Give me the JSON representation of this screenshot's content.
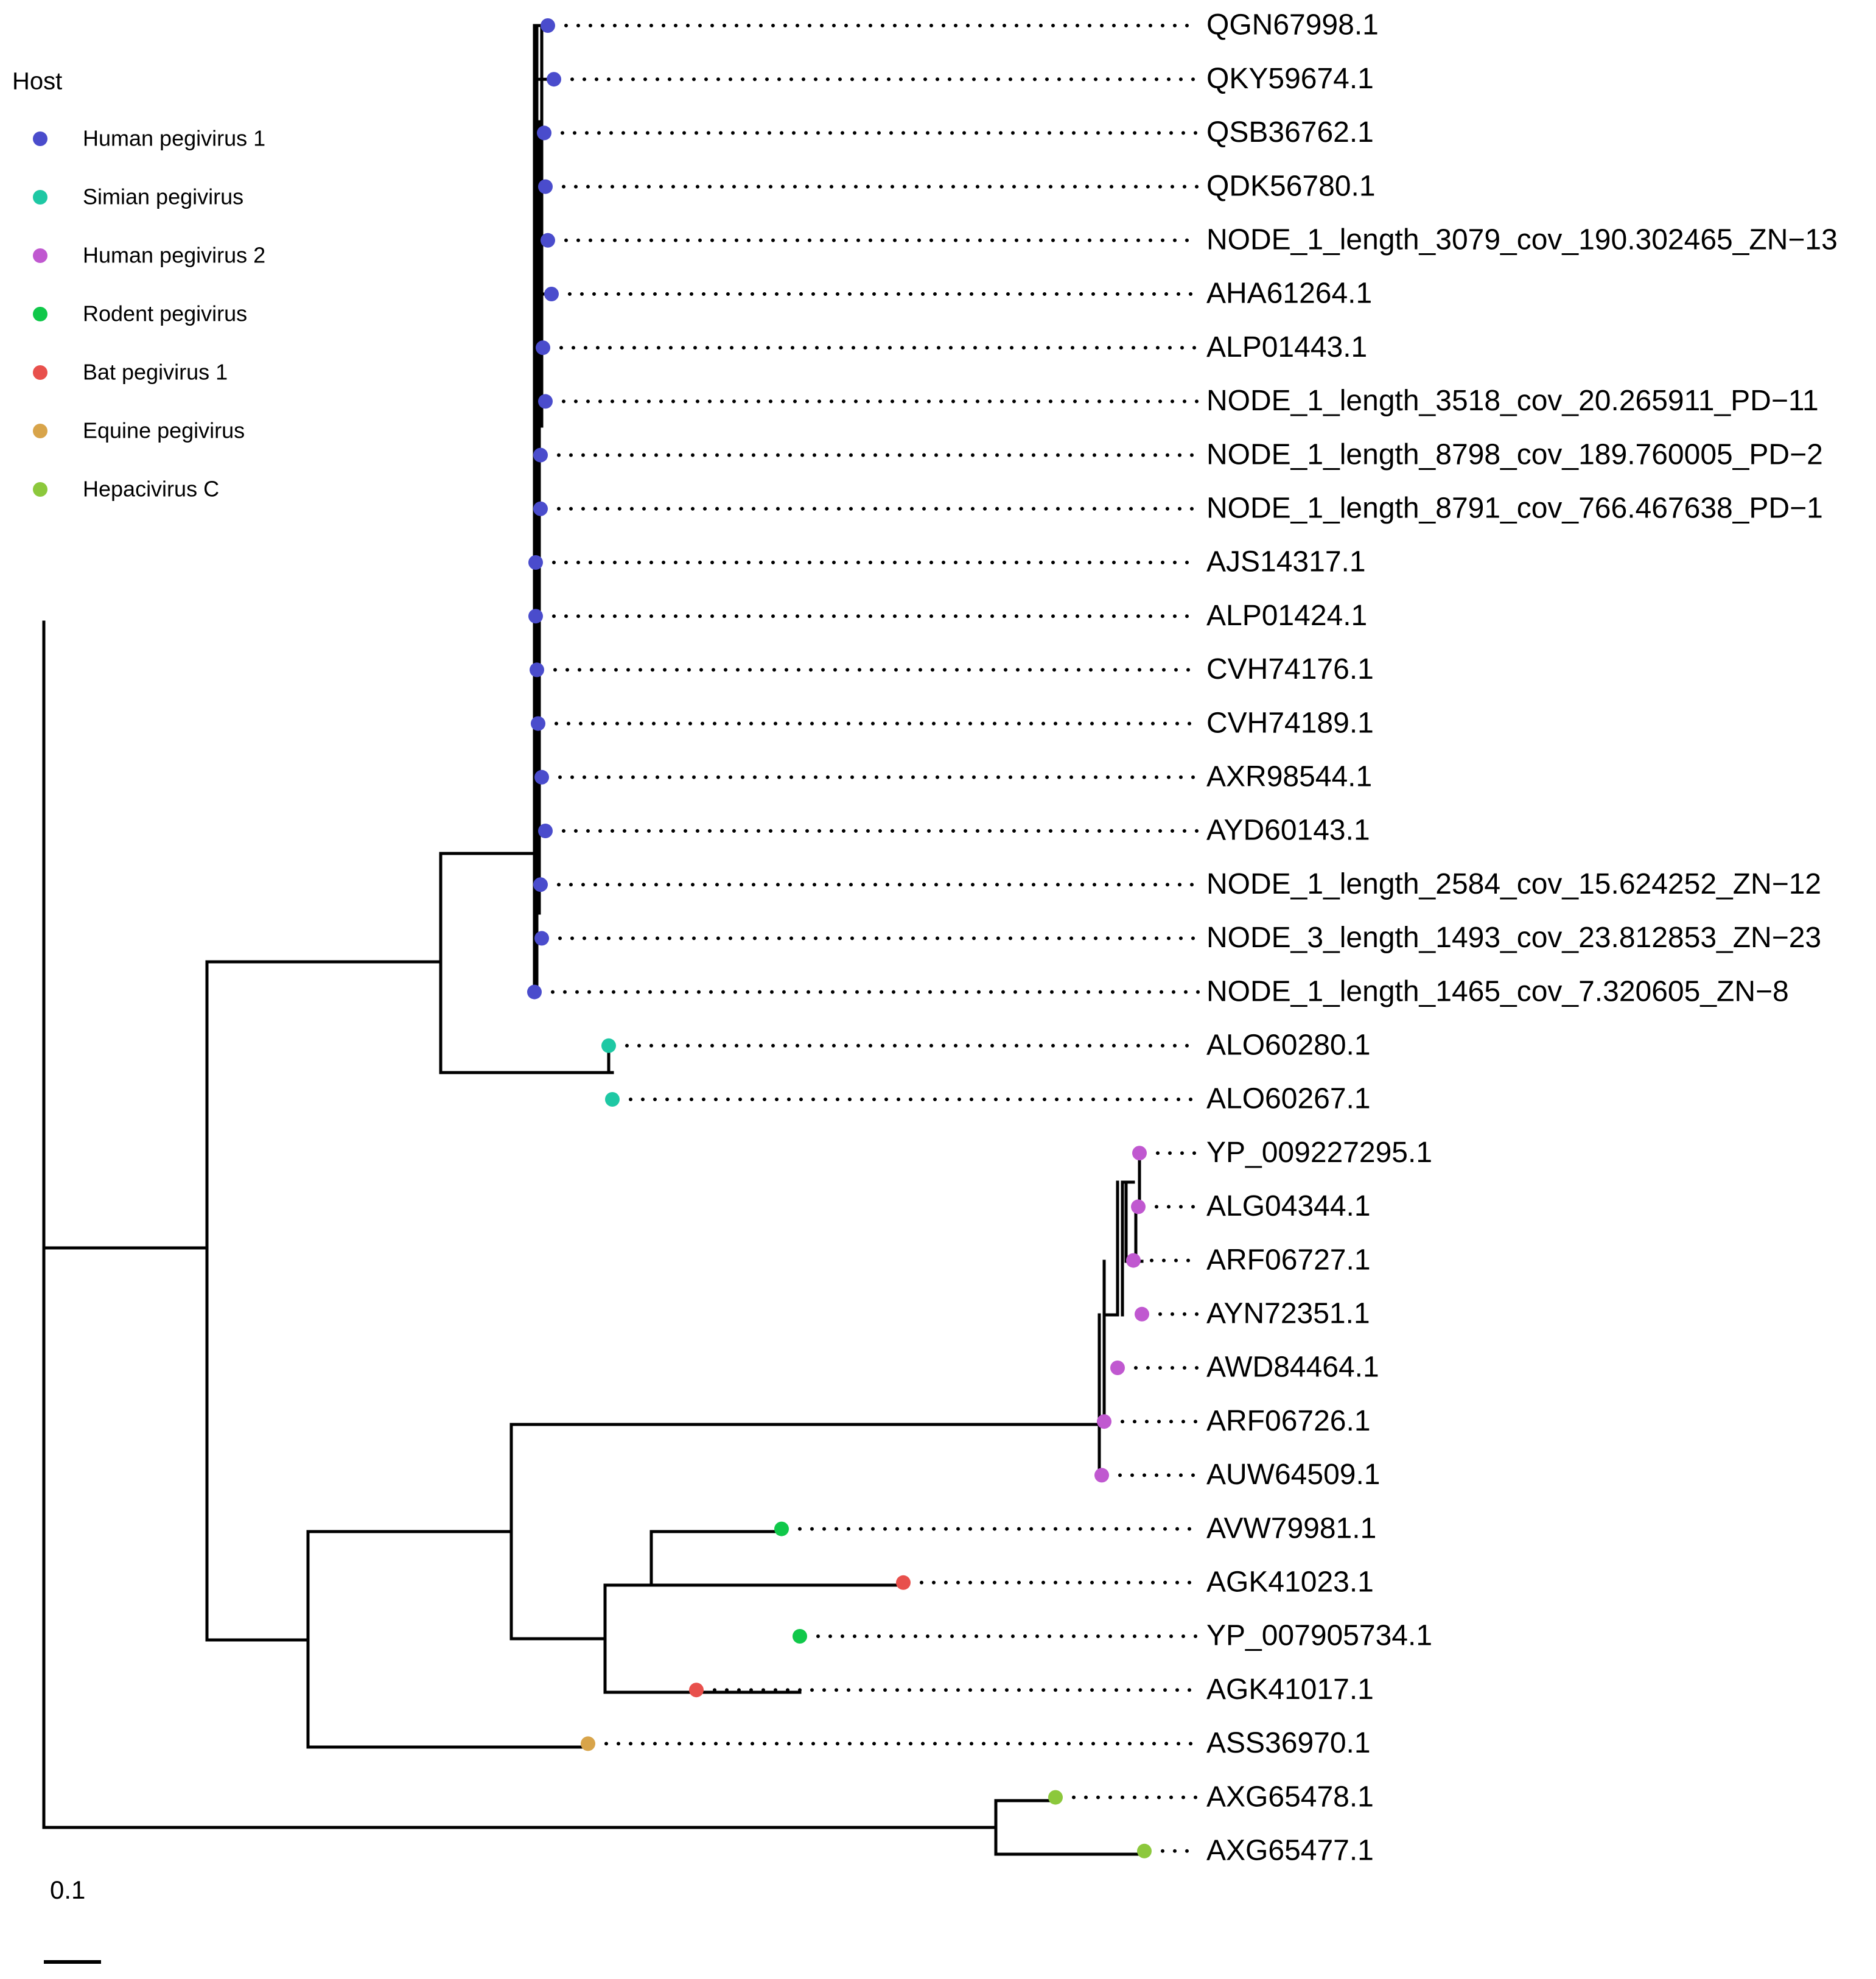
{
  "legend": {
    "title": "Host",
    "items": [
      {
        "key": "hpgv1",
        "label": "Human pegivirus 1",
        "color": "#4a4ccc"
      },
      {
        "key": "spgv",
        "label": "Simian pegivirus",
        "color": "#1ec8a4"
      },
      {
        "key": "hpgv2",
        "label": "Human pegivirus 2",
        "color": "#c058d0"
      },
      {
        "key": "rpgv",
        "label": "Rodent pegivirus",
        "color": "#10c84a"
      },
      {
        "key": "bpgv",
        "label": "Bat pegivirus 1",
        "color": "#e8504c"
      },
      {
        "key": "epgv",
        "label": "Equine pegivirus",
        "color": "#d8a44a"
      },
      {
        "key": "hcv",
        "label": "Hepacivirus C",
        "color": "#8cc83c"
      }
    ]
  },
  "scale_bar": {
    "label": "0.1"
  },
  "tips": [
    {
      "label": "QGN67998.1",
      "host": "hpgv1"
    },
    {
      "label": "QKY59674.1",
      "host": "hpgv1"
    },
    {
      "label": "QSB36762.1",
      "host": "hpgv1"
    },
    {
      "label": "QDK56780.1",
      "host": "hpgv1"
    },
    {
      "label": "NODE_1_length_3079_cov_190.302465_ZN−13",
      "host": "hpgv1"
    },
    {
      "label": "AHA61264.1",
      "host": "hpgv1"
    },
    {
      "label": "ALP01443.1",
      "host": "hpgv1"
    },
    {
      "label": "NODE_1_length_3518_cov_20.265911_PD−11",
      "host": "hpgv1"
    },
    {
      "label": "NODE_1_length_8798_cov_189.760005_PD−2",
      "host": "hpgv1"
    },
    {
      "label": "NODE_1_length_8791_cov_766.467638_PD−1",
      "host": "hpgv1"
    },
    {
      "label": "AJS14317.1",
      "host": "hpgv1"
    },
    {
      "label": "ALP01424.1",
      "host": "hpgv1"
    },
    {
      "label": "CVH74176.1",
      "host": "hpgv1"
    },
    {
      "label": "CVH74189.1",
      "host": "hpgv1"
    },
    {
      "label": "AXR98544.1",
      "host": "hpgv1"
    },
    {
      "label": "AYD60143.1",
      "host": "hpgv1"
    },
    {
      "label": "NODE_1_length_2584_cov_15.624252_ZN−12",
      "host": "hpgv1"
    },
    {
      "label": "NODE_3_length_1493_cov_23.812853_ZN−23",
      "host": "hpgv1"
    },
    {
      "label": "NODE_1_length_1465_cov_7.320605_ZN−8",
      "host": "hpgv1"
    },
    {
      "label": "ALO60280.1",
      "host": "spgv"
    },
    {
      "label": "ALO60267.1",
      "host": "spgv"
    },
    {
      "label": "YP_009227295.1",
      "host": "hpgv2"
    },
    {
      "label": "ALG04344.1",
      "host": "hpgv2"
    },
    {
      "label": "ARF06727.1",
      "host": "hpgv2"
    },
    {
      "label": "AYN72351.1",
      "host": "hpgv2"
    },
    {
      "label": "AWD84464.1",
      "host": "hpgv2"
    },
    {
      "label": "ARF06726.1",
      "host": "hpgv2"
    },
    {
      "label": "AUW64509.1",
      "host": "hpgv2"
    },
    {
      "label": "AVW79981.1",
      "host": "rpgv"
    },
    {
      "label": "AGK41023.1",
      "host": "bpgv"
    },
    {
      "label": "YP_007905734.1",
      "host": "rpgv"
    },
    {
      "label": "AGK41017.1",
      "host": "bpgv"
    },
    {
      "label": "ASS36970.1",
      "host": "epgv"
    },
    {
      "label": "AXG65478.1",
      "host": "hcv"
    },
    {
      "label": "AXG65477.1",
      "host": "hcv"
    }
  ]
}
